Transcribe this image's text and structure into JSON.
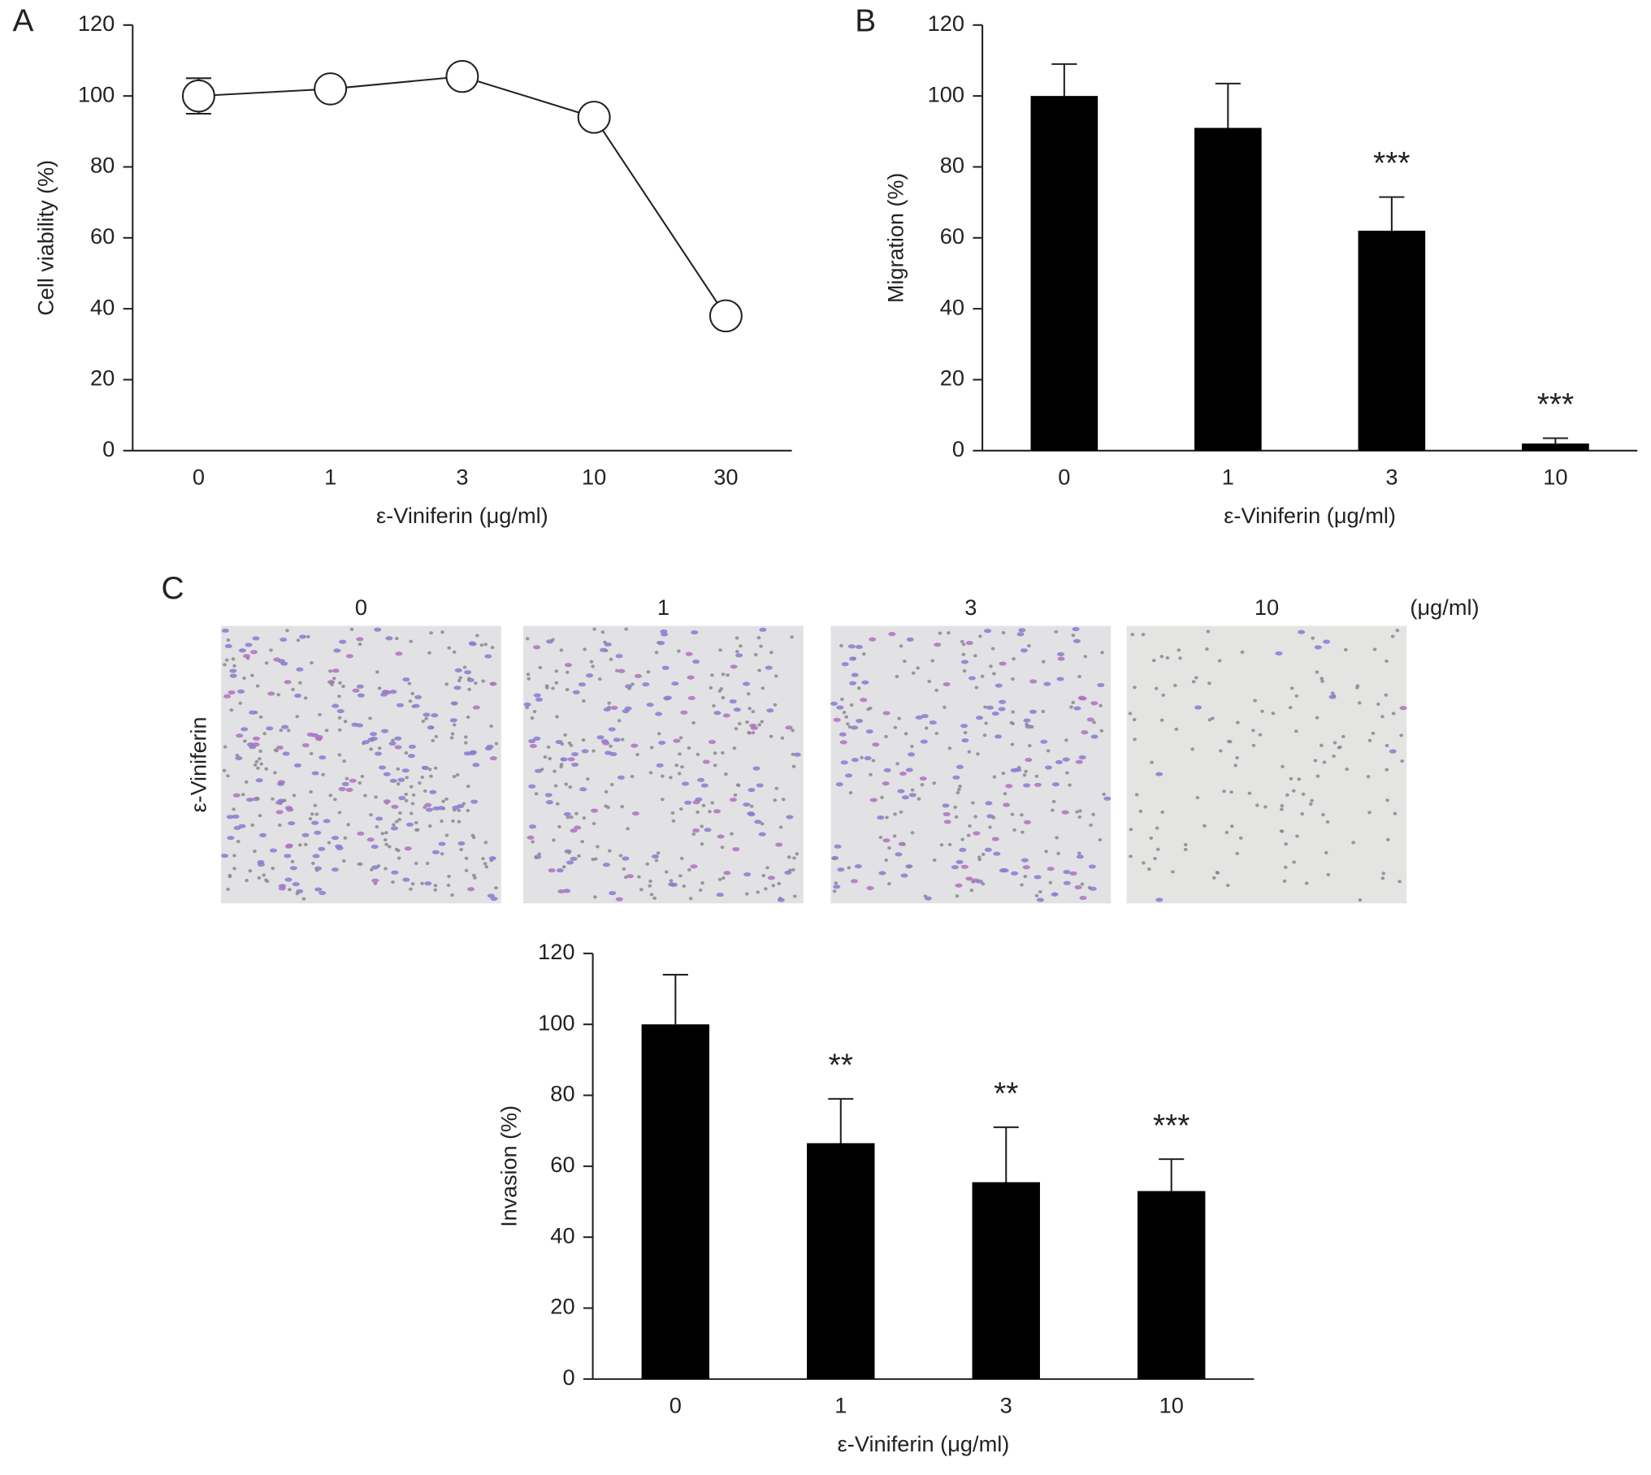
{
  "chart_data": [
    {
      "type": "line",
      "panel": "A",
      "ylabel": "Cell viability (%)",
      "xlabel": "ε-Viniferin (μg/ml)",
      "categories": [
        "0",
        "1",
        "3",
        "10",
        "30"
      ],
      "values": [
        100,
        102,
        105.5,
        94,
        38
      ],
      "errors": [
        5,
        null,
        null,
        null,
        null
      ],
      "color": "#ffffff",
      "ylim": [
        0,
        120
      ],
      "yticks": [
        0,
        20,
        40,
        60,
        80,
        100,
        120
      ]
    },
    {
      "type": "bar",
      "panel": "B",
      "ylabel": "Migration (%)",
      "xlabel": "ε-Viniferin (μg/ml)",
      "categories": [
        "0",
        "1",
        "3",
        "10"
      ],
      "values": [
        100,
        91,
        62,
        2
      ],
      "errors": [
        9,
        12.5,
        9.5,
        1.5
      ],
      "annotations": [
        null,
        null,
        "***",
        "***"
      ],
      "color": "#000000",
      "ylim": [
        0,
        120
      ],
      "yticks": [
        0,
        20,
        40,
        60,
        80,
        100,
        120
      ]
    },
    {
      "type": "bar",
      "panel": "C",
      "ylabel": "Invasion (%)",
      "xlabel": "ε-Viniferin (μg/ml)",
      "categories": [
        "0",
        "1",
        "3",
        "10"
      ],
      "values": [
        100,
        66.5,
        55.5,
        53
      ],
      "errors": [
        14,
        12.5,
        15.5,
        9
      ],
      "annotations": [
        null,
        "**",
        "**",
        "***"
      ],
      "color": "#000000",
      "ylim": [
        0,
        120
      ],
      "yticks": [
        0,
        20,
        40,
        60,
        80,
        100,
        120
      ]
    }
  ],
  "image_panel": {
    "row_label": "ε-Viniferin",
    "columns": [
      "0",
      "1",
      "3",
      "10"
    ],
    "unit": "(μg/ml)"
  }
}
